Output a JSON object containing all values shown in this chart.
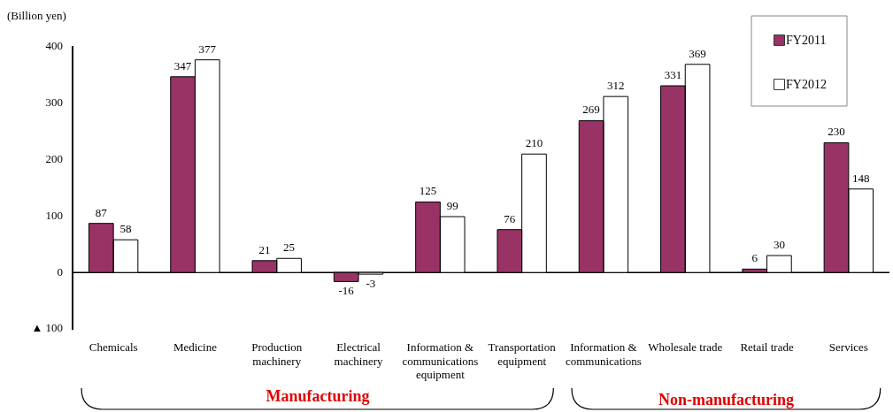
{
  "chart_data": {
    "type": "bar",
    "ylabel": "(Billion yen)",
    "categories": [
      "Chemicals",
      "Medicine",
      "Production machinery",
      "Electrical machinery",
      "Information & communications equipment",
      "Transportation equipment",
      "Information & communications",
      "Wholesale trade",
      "Retail trade",
      "Services"
    ],
    "series": [
      {
        "name": "FY2011",
        "color": "#993366",
        "values": [
          87,
          347,
          21,
          -16,
          125,
          76,
          269,
          331,
          6,
          230
        ]
      },
      {
        "name": "FY2012",
        "color": "#ffffff",
        "values": [
          58,
          377,
          25,
          -3,
          99,
          210,
          312,
          369,
          30,
          148
        ]
      }
    ],
    "ylim": [
      -100,
      400
    ],
    "yticks": [
      {
        "value": -100,
        "label": "▲ 100"
      },
      0,
      100,
      200,
      300,
      400
    ],
    "ref_lines": [
      {
        "axis": "y",
        "value": 0,
        "color": "#000000"
      }
    ],
    "grid": false,
    "legend": "top right",
    "data_labels": true,
    "annotations": [
      "Manufacturing",
      "Non-manufacturing"
    ]
  }
}
